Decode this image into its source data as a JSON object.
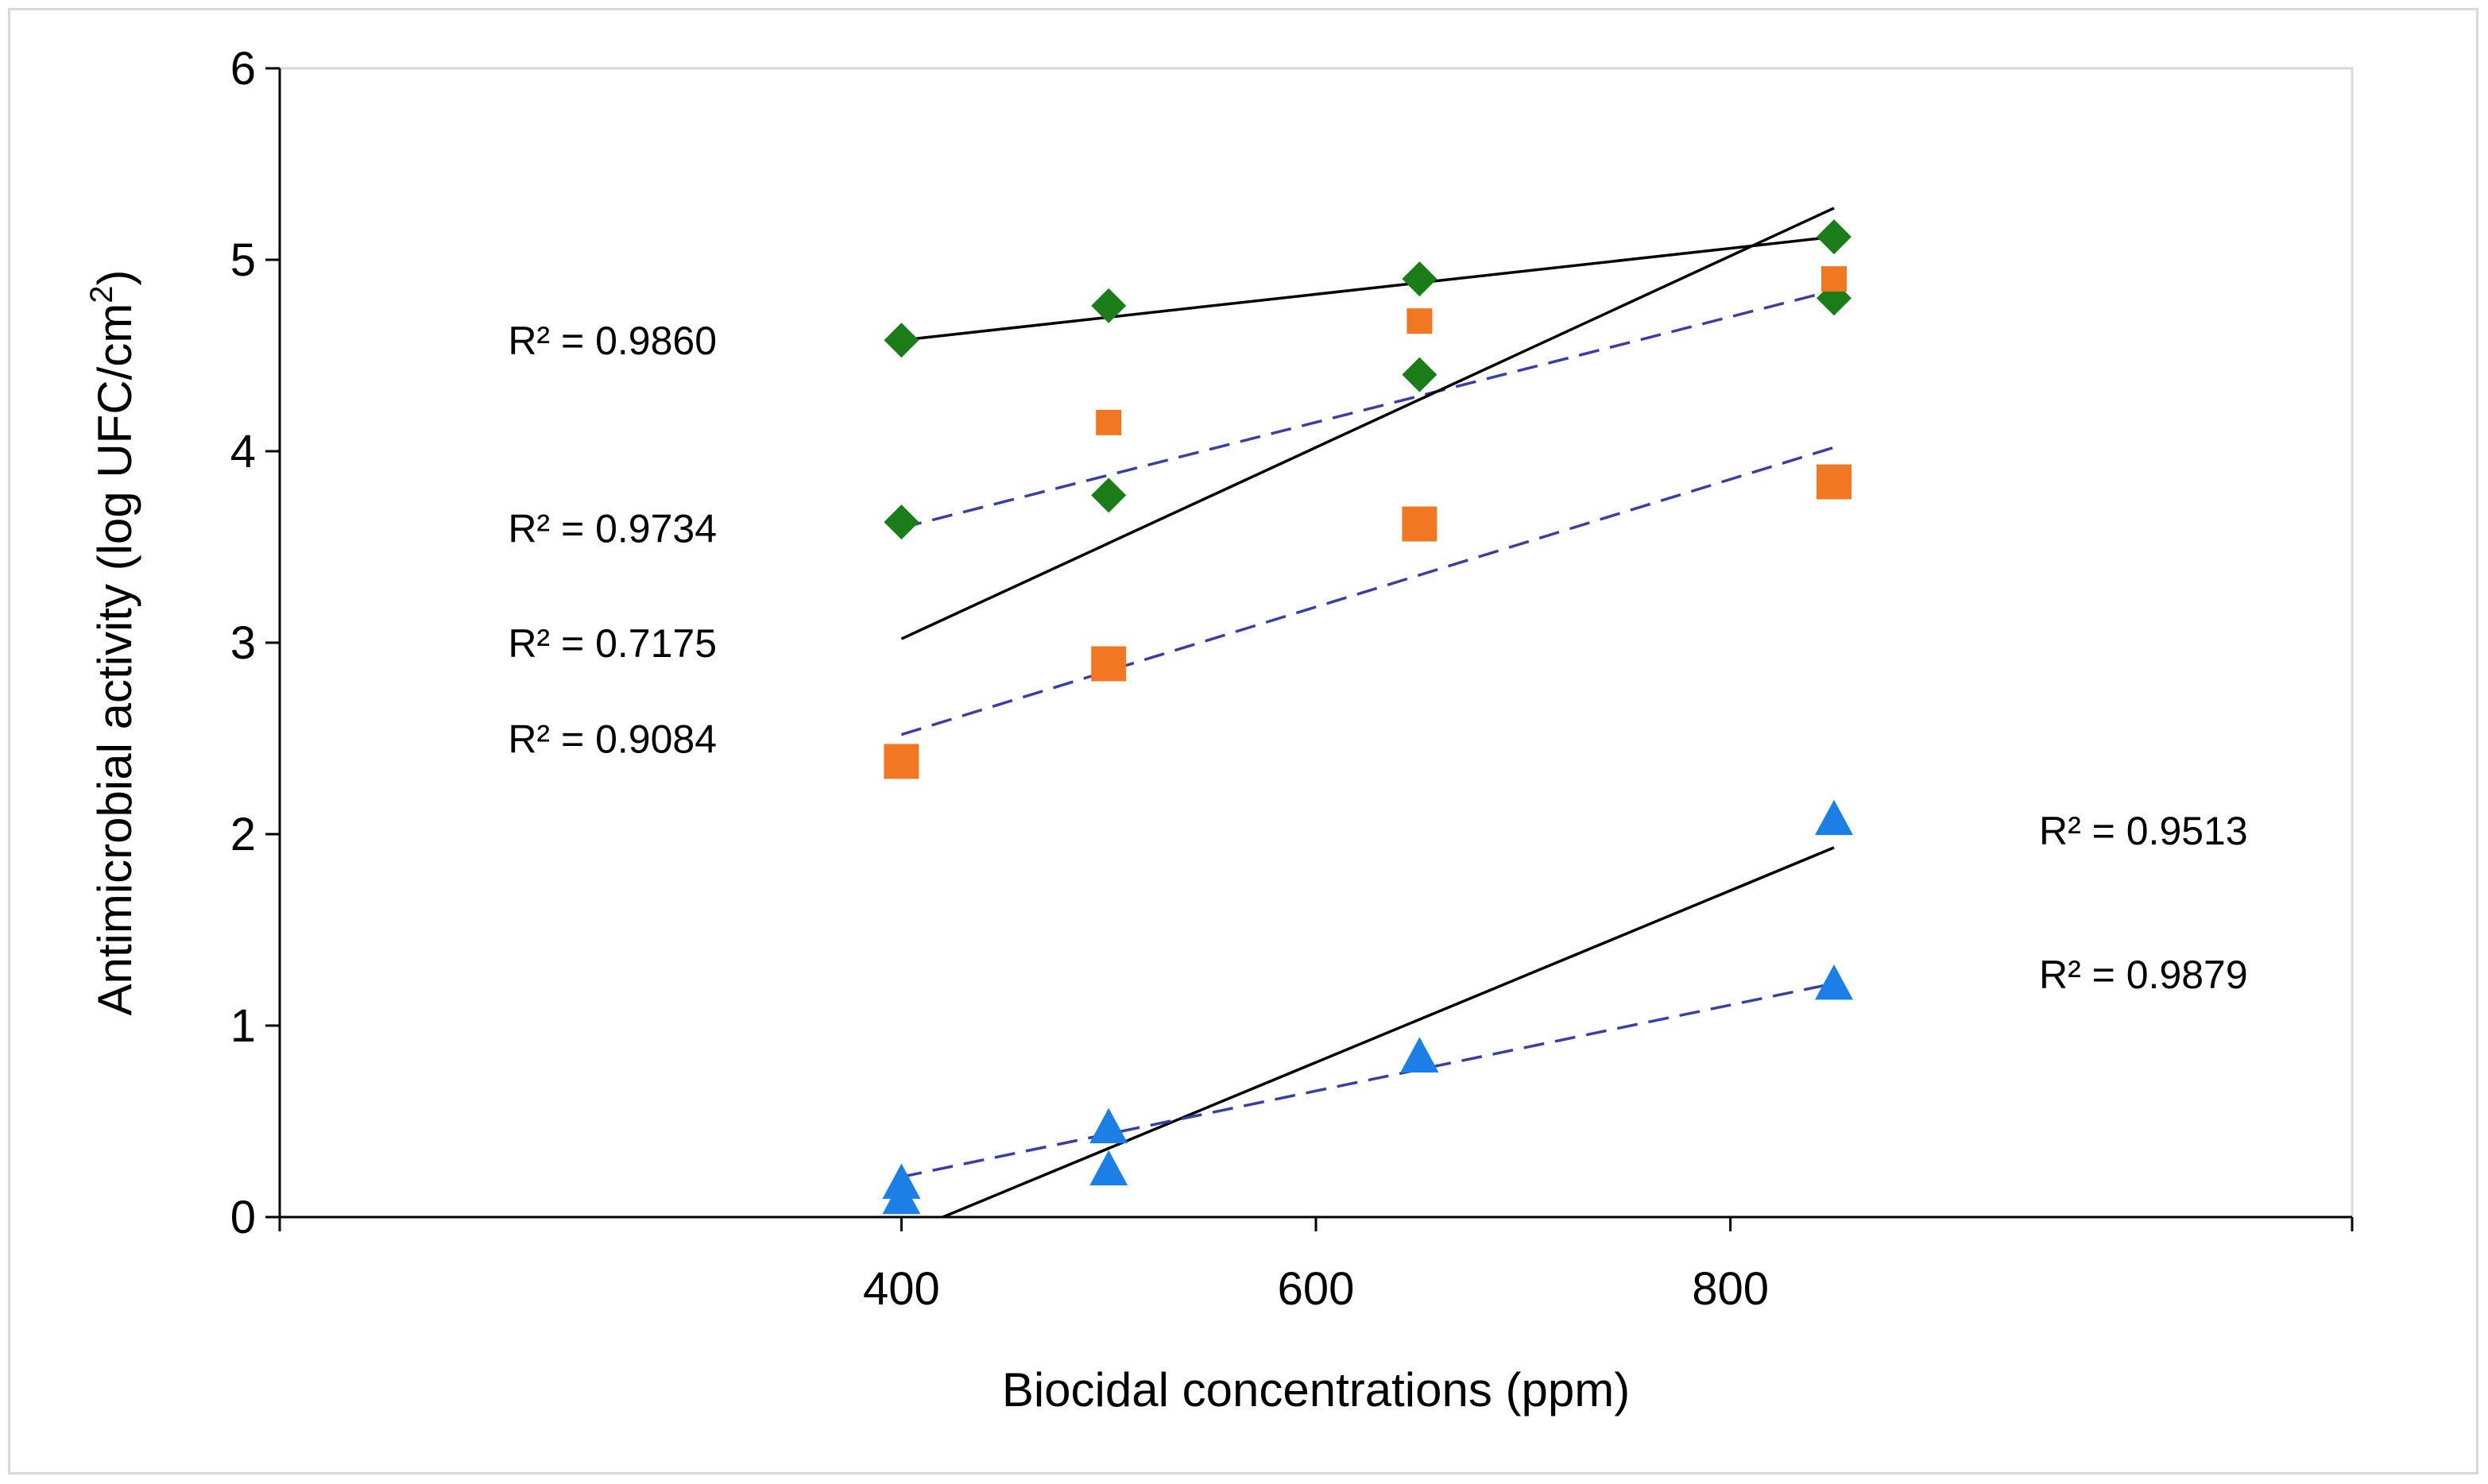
{
  "chart_data": {
    "type": "scatter",
    "title": "",
    "xlabel": "Biocidal concentrations (ppm)",
    "ylabel_main": "Antimicrobial activity (log UFC/cm",
    "ylabel_sup": "2",
    "ylabel_close": ")",
    "xlim": [
      100,
      1100
    ],
    "ylim": [
      0,
      6
    ],
    "xticks": [
      400,
      600,
      800
    ],
    "yticks": [
      0,
      1,
      2,
      3,
      4,
      5,
      6
    ],
    "grid": false,
    "colors": {
      "green": "#1a7d1a",
      "orange": "#f07822",
      "blue": "#1c7fe6",
      "solid_line": "#000000",
      "dashed_line": "#3a3fa0"
    },
    "series": [
      {
        "name": "green diamond set A",
        "marker": "diamond",
        "color": "#1a7d1a",
        "x": [
          400,
          500,
          650,
          850
        ],
        "y": [
          4.58,
          4.76,
          4.9,
          5.12
        ]
      },
      {
        "name": "green diamond set B",
        "marker": "diamond",
        "color": "#1a7d1a",
        "x": [
          400,
          500,
          650,
          850
        ],
        "y": [
          3.63,
          3.77,
          4.4,
          4.8
        ]
      },
      {
        "name": "orange square set A",
        "marker": "square",
        "color": "#f07822",
        "x": [
          500,
          650,
          850
        ],
        "y": [
          4.15,
          4.68,
          4.9
        ],
        "size": "small"
      },
      {
        "name": "orange square set B",
        "marker": "square",
        "color": "#f07822",
        "x": [
          400,
          500,
          650,
          850
        ],
        "y": [
          2.38,
          2.89,
          3.62,
          3.84
        ],
        "size": "large"
      },
      {
        "name": "blue triangle set A",
        "marker": "triangle",
        "color": "#1c7fe6",
        "x": [
          400,
          500,
          650,
          850
        ],
        "y": [
          0.1,
          0.25,
          0.84,
          2.08
        ]
      },
      {
        "name": "blue triangle set B",
        "marker": "triangle",
        "color": "#1c7fe6",
        "x": [
          400,
          500,
          650,
          850
        ],
        "y": [
          0.18,
          0.47,
          0.84,
          1.22
        ]
      }
    ],
    "trendlines": [
      {
        "style": "solid",
        "x": [
          400,
          850
        ],
        "y": [
          4.58,
          5.12
        ]
      },
      {
        "style": "dashed",
        "x": [
          400,
          850
        ],
        "y": [
          3.6,
          4.84
        ]
      },
      {
        "style": "solid",
        "x": [
          400,
          850
        ],
        "y": [
          3.02,
          5.27
        ]
      },
      {
        "style": "dashed",
        "x": [
          400,
          850
        ],
        "y": [
          2.52,
          4.02
        ]
      },
      {
        "style": "solid",
        "x": [
          420,
          850
        ],
        "y": [
          0.0,
          1.93
        ]
      },
      {
        "style": "dashed",
        "x": [
          400,
          850
        ],
        "y": [
          0.21,
          1.22
        ]
      }
    ],
    "annotations": [
      {
        "text": "R² = 0.9860",
        "anchor": "left",
        "y": 4.58
      },
      {
        "text": "R² = 0.9734",
        "anchor": "left",
        "y": 3.6
      },
      {
        "text": "R² = 0.7175",
        "anchor": "left",
        "y": 3.0
      },
      {
        "text": "R² = 0.9084",
        "anchor": "left",
        "y": 2.5
      },
      {
        "text": "R² = 0.9513",
        "anchor": "right",
        "y": 2.02
      },
      {
        "text": "R² = 0.9879",
        "anchor": "right",
        "y": 1.27
      }
    ]
  }
}
